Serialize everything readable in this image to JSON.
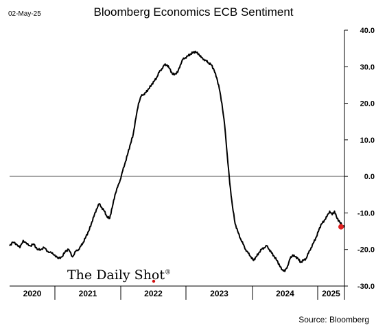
{
  "header": {
    "date": "02-May-25"
  },
  "watermark": {
    "text": "The Daily Shot",
    "mark": "®"
  },
  "footer": {
    "source": "Source: Bloomberg"
  },
  "colors": {
    "line": "#000000",
    "zero_line": "#808080",
    "last_point": "#e02020",
    "axis": "#000000"
  },
  "chart_data": {
    "type": "line",
    "title": "Bloomberg Economics ECB Sentiment",
    "xlabel": "",
    "ylabel": "",
    "x_tick_labels": [
      "2020",
      "2021",
      "2022",
      "2023",
      "2024",
      "2025"
    ],
    "xlim": [
      "2020-01-01",
      "2025-05-02"
    ],
    "ylim": [
      -30,
      40
    ],
    "y_ticks": [
      40,
      30,
      20,
      10,
      0,
      -10,
      -20,
      -30
    ],
    "y_tick_labels": [
      "40.0",
      "30.0",
      "20.0",
      "10.0",
      "0.0",
      "-10.0",
      "-20.0",
      "-30.0"
    ],
    "zero_line": 0,
    "grid": false,
    "legend": "none",
    "last_point_marker": true,
    "series": [
      {
        "x": [
          "2020-01-01",
          "2020-01-20",
          "2020-02-10",
          "2020-03-01",
          "2020-03-20",
          "2020-04-10",
          "2020-05-01",
          "2020-05-20",
          "2020-06-10",
          "2020-07-01",
          "2020-07-20",
          "2020-08-10",
          "2020-09-01",
          "2020-09-20",
          "2020-10-10",
          "2020-11-01",
          "2020-11-20",
          "2020-12-10",
          "2021-01-01",
          "2021-01-20",
          "2021-02-05",
          "2021-02-20",
          "2021-03-05",
          "2021-03-20",
          "2021-04-05",
          "2021-04-20",
          "2021-05-05",
          "2021-05-20",
          "2021-06-05",
          "2021-06-20",
          "2021-07-05",
          "2021-07-20",
          "2021-08-05",
          "2021-08-20",
          "2021-09-05",
          "2021-09-20",
          "2021-10-05",
          "2021-10-20",
          "2021-11-05",
          "2021-11-20",
          "2021-12-05",
          "2021-12-20",
          "2022-01-05",
          "2022-01-20",
          "2022-02-05",
          "2022-02-20",
          "2022-03-05",
          "2022-03-20",
          "2022-04-05",
          "2022-04-20",
          "2022-05-05",
          "2022-05-20",
          "2022-06-05",
          "2022-06-20",
          "2022-07-05",
          "2022-07-20",
          "2022-08-05",
          "2022-08-20",
          "2022-09-05",
          "2022-09-20",
          "2022-10-05",
          "2022-10-20",
          "2022-11-05",
          "2022-11-20",
          "2022-12-05",
          "2022-12-20",
          "2023-01-05",
          "2023-01-20",
          "2023-02-05",
          "2023-02-20",
          "2023-03-05",
          "2023-03-20",
          "2023-04-05",
          "2023-04-20",
          "2023-05-05",
          "2023-05-20",
          "2023-06-05",
          "2023-06-20",
          "2023-07-05",
          "2023-07-20",
          "2023-08-05",
          "2023-08-20",
          "2023-09-05",
          "2023-09-20",
          "2023-10-05",
          "2023-10-20",
          "2023-11-05",
          "2023-11-20",
          "2023-12-05",
          "2023-12-20",
          "2024-01-05",
          "2024-01-20",
          "2024-02-05",
          "2024-02-20",
          "2024-03-05",
          "2024-03-20",
          "2024-04-05",
          "2024-04-20",
          "2024-05-05",
          "2024-05-20",
          "2024-06-05",
          "2024-06-20",
          "2024-07-05",
          "2024-07-20",
          "2024-08-05",
          "2024-08-20",
          "2024-09-05",
          "2024-09-20",
          "2024-10-05",
          "2024-10-20",
          "2024-11-05",
          "2024-11-20",
          "2024-12-05",
          "2024-12-20",
          "2025-01-05",
          "2025-01-20",
          "2025-02-05",
          "2025-02-20",
          "2025-03-05",
          "2025-03-20",
          "2025-04-05",
          "2025-04-20",
          "2025-05-02"
        ],
        "y": [
          -19.0,
          -18.0,
          -18.5,
          -19.5,
          -17.5,
          -18.5,
          -19.0,
          -18.5,
          -20.0,
          -20.0,
          -19.5,
          -20.5,
          -21.0,
          -21.5,
          -22.5,
          -22.0,
          -20.5,
          -20.0,
          -22.0,
          -20.5,
          -20.0,
          -19.0,
          -18.0,
          -16.5,
          -15.0,
          -13.0,
          -11.0,
          -9.0,
          -7.5,
          -8.5,
          -9.5,
          -11.0,
          -11.5,
          -8.5,
          -5.0,
          -3.0,
          -1.0,
          1.5,
          4.0,
          6.5,
          9.0,
          11.5,
          16.0,
          20.0,
          22.0,
          22.5,
          23.0,
          24.0,
          25.0,
          26.0,
          27.0,
          28.5,
          29.5,
          30.5,
          30.5,
          29.5,
          28.0,
          28.0,
          28.5,
          30.5,
          32.0,
          32.5,
          33.0,
          33.5,
          34.0,
          34.0,
          33.5,
          32.5,
          32.0,
          31.5,
          31.0,
          30.5,
          29.0,
          27.0,
          24.0,
          20.0,
          14.0,
          6.0,
          -2.0,
          -8.0,
          -13.0,
          -15.0,
          -17.0,
          -18.5,
          -20.0,
          -21.0,
          -22.0,
          -23.0,
          -22.0,
          -21.0,
          -20.0,
          -19.5,
          -19.0,
          -20.0,
          -21.0,
          -22.0,
          -23.0,
          -24.5,
          -25.5,
          -26.0,
          -24.5,
          -22.5,
          -21.5,
          -22.0,
          -22.5,
          -23.5,
          -23.0,
          -22.5,
          -21.0,
          -19.5,
          -18.0,
          -16.5,
          -14.5,
          -13.0,
          -12.0,
          -11.0,
          -9.5,
          -10.5,
          -9.5,
          -11.5,
          -12.5,
          -13.5,
          -13.8
        ]
      }
    ]
  }
}
